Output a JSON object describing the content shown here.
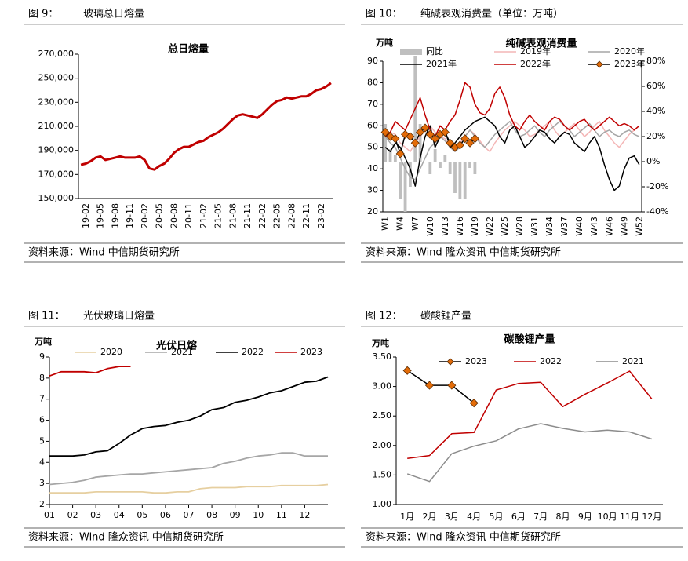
{
  "figures": [
    {
      "label": "图 9：",
      "caption": "玻璃总日熔量",
      "source": "资料来源：Wind 中信期货研究所"
    },
    {
      "label": "图 10：",
      "caption": "纯碱表观消费量（单位：万吨）",
      "source": "资料来源：Wind 隆众资讯 中信期货研究所"
    },
    {
      "label": "图 11：",
      "caption": "光伏玻璃日熔量",
      "source": "资料来源：Wind 隆众资讯 中信期货研究所"
    },
    {
      "label": "图 12：",
      "caption": "碳酸锂产量",
      "source": "资料来源：Wind 隆众资讯 中信期货研究所"
    }
  ],
  "chart_data": [
    {
      "type": "line",
      "title": "总日熔量",
      "categories": [
        null,
        "19-02",
        null,
        null,
        "19-05",
        null,
        null,
        "19-08",
        null,
        null,
        "19-11",
        null,
        null,
        "20-02",
        null,
        null,
        "20-05",
        null,
        null,
        "20-08",
        null,
        null,
        "20-11",
        null,
        null,
        "21-02",
        null,
        null,
        "21-05",
        null,
        null,
        "21-08",
        null,
        null,
        "21-11",
        null,
        null,
        "22-02",
        null,
        null,
        "22-05",
        null,
        null,
        "22-08",
        null,
        null,
        "22-11",
        null,
        null,
        "23-02",
        null,
        null
      ],
      "series": [
        {
          "name": "总日熔量",
          "color": "#c00000",
          "values": [
            178000,
            179000,
            181000,
            184000,
            185000,
            182000,
            183000,
            184000,
            185000,
            184000,
            184000,
            184000,
            185000,
            182000,
            175000,
            174000,
            177000,
            179000,
            183000,
            188000,
            191000,
            193000,
            193000,
            195000,
            197000,
            198000,
            201000,
            203000,
            205000,
            208000,
            212000,
            216000,
            219000,
            220000,
            219000,
            218000,
            217000,
            220000,
            224000,
            228000,
            231000,
            232000,
            234000,
            233000,
            234000,
            235000,
            235000,
            237000,
            240000,
            241000,
            243000,
            246000
          ]
        }
      ],
      "ylim": [
        150000,
        270000
      ],
      "yticks": [
        {
          "value": 150000,
          "label": "150,000"
        },
        {
          "value": 170000,
          "label": "170,000"
        },
        {
          "value": 190000,
          "label": "190,000"
        },
        {
          "value": 210000,
          "label": "210,000"
        },
        {
          "value": 230000,
          "label": "230,000"
        },
        {
          "value": 250000,
          "label": "250,000"
        },
        {
          "value": 270000,
          "label": "270,000"
        }
      ],
      "grid": false
    },
    {
      "type": "line",
      "title": "纯碱表观消费量",
      "y_label": "万吨",
      "categories": [
        "W1",
        null,
        null,
        "W4",
        null,
        null,
        "W7",
        null,
        null,
        "W10",
        null,
        null,
        "W13",
        null,
        null,
        "W16",
        null,
        null,
        "W19",
        null,
        null,
        "W22",
        null,
        null,
        "W25",
        null,
        null,
        "W28",
        null,
        null,
        "W31",
        null,
        null,
        "W34",
        null,
        null,
        "W37",
        null,
        null,
        "W40",
        null,
        null,
        "W43",
        null,
        null,
        "W46",
        null,
        null,
        "W49",
        null,
        null,
        "W52"
      ],
      "series": [
        {
          "name": "同比",
          "type": "bar",
          "axis": "y2",
          "color": "#bfbfbf",
          "values": [
            30,
            10,
            5,
            -30,
            -40,
            -20,
            84,
            30,
            0,
            -10,
            10,
            -5,
            5,
            -10,
            -25,
            -30,
            -30,
            -5,
            -10,
            null,
            null,
            null,
            null,
            null,
            null,
            null,
            null,
            null,
            null,
            null,
            null,
            null,
            null,
            null,
            null,
            null,
            null,
            null,
            null,
            null,
            null,
            null,
            null,
            null,
            null,
            null,
            null,
            null,
            null,
            null,
            null,
            null
          ]
        },
        {
          "name": "2019年",
          "color": "#f4b6b6",
          "values": [
            55,
            57,
            56,
            52,
            50,
            48,
            52,
            55,
            58,
            60,
            57,
            55,
            54,
            50,
            48,
            52,
            55,
            58,
            56,
            53,
            50,
            48,
            52,
            55,
            58,
            60,
            62,
            60,
            58,
            55,
            56,
            58,
            60,
            62,
            58,
            55,
            57,
            59,
            61,
            58,
            55,
            57,
            60,
            62,
            58,
            55,
            52,
            50,
            53,
            56,
            58,
            60
          ]
        },
        {
          "name": "2020年",
          "color": "#a6a6a6",
          "values": [
            55,
            52,
            50,
            45,
            40,
            36,
            35,
            40,
            45,
            50,
            52,
            55,
            53,
            50,
            48,
            50,
            55,
            58,
            55,
            52,
            50,
            53,
            56,
            58,
            60,
            62,
            58,
            55,
            56,
            58,
            60,
            57,
            55,
            58,
            60,
            62,
            60,
            58,
            55,
            57,
            59,
            61,
            58,
            55,
            57,
            58,
            56,
            55,
            57,
            58,
            56,
            55
          ]
        },
        {
          "name": "2021年",
          "color": "#000000",
          "values": [
            50,
            48,
            52,
            50,
            45,
            40,
            32,
            45,
            55,
            60,
            50,
            55,
            58,
            50,
            52,
            55,
            58,
            60,
            62,
            63,
            64,
            62,
            60,
            55,
            52,
            58,
            60,
            55,
            50,
            52,
            55,
            58,
            57,
            54,
            52,
            55,
            57,
            56,
            52,
            50,
            48,
            52,
            55,
            50,
            42,
            35,
            30,
            32,
            40,
            45,
            46,
            42
          ]
        },
        {
          "name": "2022年",
          "color": "#c00000",
          "values": [
            55,
            57,
            62,
            60,
            58,
            63,
            68,
            73,
            65,
            58,
            55,
            60,
            58,
            62,
            65,
            72,
            80,
            78,
            70,
            66,
            65,
            68,
            75,
            78,
            73,
            65,
            60,
            58,
            62,
            65,
            62,
            60,
            58,
            62,
            64,
            63,
            60,
            58,
            60,
            62,
            63,
            60,
            58,
            60,
            62,
            64,
            62,
            60,
            61,
            60,
            58,
            60
          ]
        },
        {
          "name": "2023年",
          "color": "#000000",
          "marker": "diamond",
          "marker_color": "#e36c09",
          "values": [
            57,
            55,
            54,
            47,
            56,
            55,
            52,
            57,
            59,
            56,
            54,
            56,
            57,
            52,
            50,
            51,
            54,
            52,
            54,
            null,
            null,
            null,
            null,
            null,
            null,
            null,
            null,
            null,
            null,
            null,
            null,
            null,
            null,
            null,
            null,
            null,
            null,
            null,
            null,
            null,
            null,
            null,
            null,
            null,
            null,
            null,
            null,
            null,
            null,
            null,
            null,
            null
          ]
        }
      ],
      "ylim": [
        20,
        90
      ],
      "yticks": [
        20,
        30,
        40,
        50,
        60,
        70,
        80,
        90
      ],
      "y2lim": [
        -40,
        80
      ],
      "y2ticks": [
        {
          "value": -40,
          "label": "-40%"
        },
        {
          "value": -20,
          "label": "-20%"
        },
        {
          "value": 0,
          "label": "0%"
        },
        {
          "value": 20,
          "label": "20%"
        },
        {
          "value": 40,
          "label": "40%"
        },
        {
          "value": 60,
          "label": "60%"
        },
        {
          "value": 80,
          "label": "80%"
        }
      ],
      "grid": false
    },
    {
      "type": "line",
      "title": "光伏日熔",
      "y_label": "万吨",
      "x": [
        1,
        1.5,
        2,
        2.5,
        3,
        3.5,
        4,
        4.5,
        5,
        5.5,
        6,
        6.5,
        7,
        7.5,
        8,
        8.5,
        9,
        9.5,
        10,
        10.5,
        11,
        11.5,
        12,
        12.5,
        13
      ],
      "series": [
        {
          "name": "2020",
          "color": "#e6cfa0",
          "values": [
            2.55,
            2.55,
            2.55,
            2.55,
            2.6,
            2.6,
            2.6,
            2.6,
            2.6,
            2.55,
            2.55,
            2.6,
            2.6,
            2.75,
            2.8,
            2.8,
            2.8,
            2.85,
            2.85,
            2.85,
            2.9,
            2.9,
            2.9,
            2.9,
            2.95
          ]
        },
        {
          "name": "2021",
          "color": "#a6a6a6",
          "values": [
            2.95,
            3.0,
            3.05,
            3.15,
            3.3,
            3.35,
            3.4,
            3.45,
            3.45,
            3.5,
            3.55,
            3.6,
            3.65,
            3.7,
            3.75,
            3.95,
            4.05,
            4.2,
            4.3,
            4.35,
            4.45,
            4.45,
            4.3,
            4.3,
            4.3
          ]
        },
        {
          "name": "2022",
          "color": "#000000",
          "values": [
            4.3,
            4.3,
            4.3,
            4.35,
            4.5,
            4.55,
            4.9,
            5.3,
            5.6,
            5.7,
            5.75,
            5.9,
            6.0,
            6.2,
            6.5,
            6.6,
            6.85,
            6.95,
            7.1,
            7.3,
            7.4,
            7.6,
            7.8,
            7.85,
            8.05
          ]
        },
        {
          "name": "2023",
          "color": "#c00000",
          "values": [
            8.1,
            8.3,
            8.3,
            8.3,
            8.25,
            8.45,
            8.55,
            8.55,
            null,
            null,
            null,
            null,
            null,
            null,
            null,
            null,
            null,
            null,
            null,
            null,
            null,
            null,
            null,
            null,
            null
          ]
        }
      ],
      "xlim": [
        1,
        13
      ],
      "xticks": [
        {
          "value": 1,
          "label": "01"
        },
        {
          "value": 2,
          "label": "02"
        },
        {
          "value": 3,
          "label": "03"
        },
        {
          "value": 4,
          "label": "04"
        },
        {
          "value": 5,
          "label": "05"
        },
        {
          "value": 6,
          "label": "06"
        },
        {
          "value": 7,
          "label": "07"
        },
        {
          "value": 8,
          "label": "08"
        },
        {
          "value": 9,
          "label": "09"
        },
        {
          "value": 10,
          "label": "10"
        },
        {
          "value": 11,
          "label": "11"
        },
        {
          "value": 12,
          "label": "12"
        }
      ],
      "ylim": [
        2,
        9
      ],
      "yticks": [
        2,
        3,
        4,
        5,
        6,
        7,
        8,
        9
      ],
      "grid": false
    },
    {
      "type": "line",
      "title": "碳酸锂产量",
      "y_label": "万吨",
      "categories": [
        "1月",
        "2月",
        "3月",
        "4月",
        "5月",
        "6月",
        "7月",
        "8月",
        "9月",
        "10月",
        "11月",
        "12月"
      ],
      "series": [
        {
          "name": "2023",
          "color": "#000000",
          "marker": "diamond",
          "marker_color": "#e36c09",
          "values": [
            3.27,
            3.02,
            3.02,
            2.72,
            null,
            null,
            null,
            null,
            null,
            null,
            null,
            null
          ]
        },
        {
          "name": "2022",
          "color": "#c00000",
          "values": [
            1.78,
            1.83,
            2.2,
            2.22,
            2.94,
            3.05,
            3.07,
            2.66,
            2.87,
            3.06,
            3.26,
            2.79
          ]
        },
        {
          "name": "2021",
          "color": "#8c8c8c",
          "values": [
            1.52,
            1.39,
            1.86,
            1.99,
            2.08,
            2.28,
            2.37,
            2.29,
            2.23,
            2.26,
            2.23,
            2.11
          ]
        }
      ],
      "ylim": [
        1.0,
        3.5
      ],
      "yticks": [
        {
          "value": 1.0,
          "label": "1.00"
        },
        {
          "value": 1.5,
          "label": "1.50"
        },
        {
          "value": 2.0,
          "label": "2.00"
        },
        {
          "value": 2.5,
          "label": "2.50"
        },
        {
          "value": 3.0,
          "label": "3.00"
        },
        {
          "value": 3.5,
          "label": "3.50"
        }
      ],
      "grid": false
    }
  ]
}
